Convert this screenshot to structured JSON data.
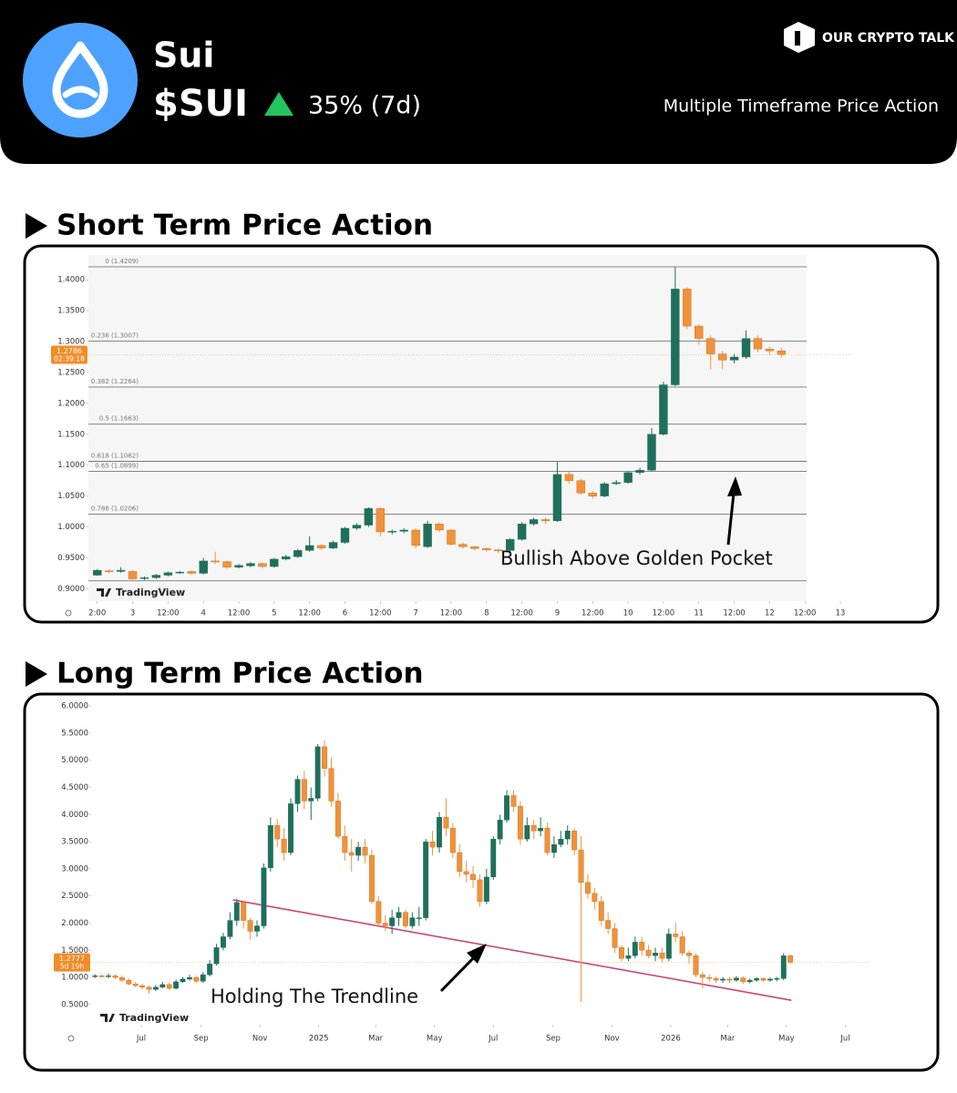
{
  "header": {
    "name": "Sui",
    "ticker": "$SUI",
    "change": "35% (7d)",
    "brand": "OUR CRYPTO TALK",
    "subtitle": "Multiple Timeframe Price Action"
  },
  "chart_data": [
    {
      "type": "candlestick",
      "title": "Short Term Price Action",
      "watermark": "TradingView",
      "annotation": "Bullish Above Golden Pocket",
      "up_color": "#1f6f5c",
      "down_color": "#f0923a",
      "grid": false,
      "xlim": [
        -15,
        244
      ],
      "ylim": [
        0.88,
        1.44
      ],
      "xticks": [
        {
          "value": -12,
          "label": "2:00"
        },
        {
          "value": 0,
          "label": "3"
        },
        {
          "value": 12,
          "label": "12:00"
        },
        {
          "value": 24,
          "label": "4"
        },
        {
          "value": 36,
          "label": "12:00"
        },
        {
          "value": 48,
          "label": "5"
        },
        {
          "value": 60,
          "label": "12:00"
        },
        {
          "value": 72,
          "label": "6"
        },
        {
          "value": 84,
          "label": "12:00"
        },
        {
          "value": 96,
          "label": "7"
        },
        {
          "value": 108,
          "label": "12:00"
        },
        {
          "value": 120,
          "label": "8"
        },
        {
          "value": 132,
          "label": "12:00"
        },
        {
          "value": 144,
          "label": "9"
        },
        {
          "value": 156,
          "label": "12:00"
        },
        {
          "value": 168,
          "label": "10"
        },
        {
          "value": 180,
          "label": "12:00"
        },
        {
          "value": 192,
          "label": "11"
        },
        {
          "value": 204,
          "label": "12:00"
        },
        {
          "value": 216,
          "label": "12"
        },
        {
          "value": 228,
          "label": "12:00"
        },
        {
          "value": 240,
          "label": "13"
        }
      ],
      "yticks": [
        {
          "value": 0.9,
          "label": "0.9000"
        },
        {
          "value": 0.95,
          "label": "0.9500"
        },
        {
          "value": 1.0,
          "label": "1.0000"
        },
        {
          "value": 1.05,
          "label": "1.0500"
        },
        {
          "value": 1.1,
          "label": "1.1000"
        },
        {
          "value": 1.15,
          "label": "1.1500"
        },
        {
          "value": 1.2,
          "label": "1.2000"
        },
        {
          "value": 1.25,
          "label": "1.2500"
        },
        {
          "value": 1.3,
          "label": "1.3000"
        },
        {
          "value": 1.35,
          "label": "1.3500"
        },
        {
          "value": 1.4,
          "label": "1.4000"
        }
      ],
      "fib_levels": [
        1.4209,
        1.3007,
        1.2264,
        1.1663,
        1.1062,
        1.0899,
        1.0206,
        0.9129
      ],
      "fib_labels": [
        "0 (1.4209)",
        "0.236 (1.3007)",
        "0.382 (1.2264)",
        "0.5 (1.1663)",
        "0.618 (1.1062)",
        "0.65 (1.0899)",
        "0.786 (1.0206)",
        null
      ],
      "price_tag": {
        "value": 1.2786,
        "timer": "02:39:18"
      },
      "x": [
        -12,
        -8,
        -4,
        0,
        4,
        8,
        12,
        16,
        20,
        24,
        28,
        32,
        36,
        40,
        44,
        48,
        52,
        56,
        60,
        64,
        68,
        72,
        76,
        80,
        84,
        88,
        92,
        96,
        100,
        104,
        108,
        112,
        116,
        120,
        124,
        128,
        132,
        136,
        140,
        144,
        148,
        152,
        156,
        160,
        164,
        168,
        172,
        176,
        180,
        184,
        188,
        192,
        196,
        200,
        204,
        208,
        212,
        216,
        220
      ],
      "open": [
        0.922,
        0.929,
        0.928,
        0.928,
        0.917,
        0.918,
        0.922,
        0.926,
        0.928,
        0.925,
        0.945,
        0.944,
        0.935,
        0.937,
        0.941,
        0.936,
        0.948,
        0.952,
        0.962,
        0.97,
        0.966,
        0.975,
        0.998,
        1.003,
        1.03,
        0.992,
        0.993,
        0.995,
        0.968,
        1.005,
        0.995,
        0.972,
        0.968,
        0.965,
        0.963,
        0.962,
        0.98,
        1.005,
        1.012,
        1.01,
        1.085,
        1.075,
        1.055,
        1.05,
        1.07,
        1.072,
        1.088,
        1.092,
        1.15,
        1.23,
        1.385,
        1.325,
        1.305,
        1.28,
        1.27,
        1.275,
        1.305,
        1.288,
        1.285
      ],
      "high": [
        0.932,
        0.931,
        0.935,
        0.93,
        0.92,
        0.924,
        0.928,
        0.929,
        0.93,
        0.95,
        0.96,
        0.946,
        0.94,
        0.943,
        0.942,
        0.95,
        0.955,
        0.965,
        0.985,
        0.972,
        0.978,
        1.0,
        1.006,
        1.032,
        1.032,
        0.996,
        0.998,
        0.998,
        1.01,
        1.007,
        0.997,
        0.975,
        0.97,
        0.967,
        0.965,
        0.982,
        1.008,
        1.015,
        1.015,
        1.105,
        1.09,
        1.078,
        1.058,
        1.073,
        1.076,
        1.09,
        1.096,
        1.16,
        1.235,
        1.421,
        1.388,
        1.328,
        1.31,
        1.285,
        1.28,
        1.318,
        1.31,
        1.292,
        1.29
      ],
      "low": [
        0.921,
        0.925,
        0.926,
        0.915,
        0.914,
        0.916,
        0.92,
        0.924,
        0.923,
        0.923,
        0.94,
        0.932,
        0.933,
        0.935,
        0.933,
        0.934,
        0.946,
        0.95,
        0.96,
        0.963,
        0.964,
        0.973,
        0.995,
        1.0,
        0.985,
        0.988,
        0.99,
        0.965,
        0.966,
        0.992,
        0.97,
        0.965,
        0.962,
        0.96,
        0.958,
        0.96,
        0.978,
        1.002,
        1.005,
        1.008,
        1.07,
        1.052,
        1.046,
        1.048,
        1.068,
        1.07,
        1.085,
        1.09,
        1.148,
        1.228,
        1.32,
        1.295,
        1.255,
        1.255,
        1.265,
        1.272,
        1.283,
        1.278,
        1.274
      ],
      "close": [
        0.93,
        0.928,
        0.93,
        0.916,
        0.918,
        0.922,
        0.926,
        0.927,
        0.925,
        0.945,
        0.944,
        0.935,
        0.938,
        0.941,
        0.936,
        0.948,
        0.952,
        0.962,
        0.97,
        0.966,
        0.975,
        0.998,
        1.003,
        1.03,
        0.992,
        0.993,
        0.995,
        0.97,
        1.005,
        0.995,
        0.972,
        0.968,
        0.965,
        0.963,
        0.962,
        0.98,
        1.005,
        1.012,
        1.01,
        1.085,
        1.075,
        1.055,
        1.05,
        1.07,
        1.072,
        1.088,
        1.092,
        1.15,
        1.23,
        1.385,
        1.325,
        1.305,
        1.28,
        1.27,
        1.275,
        1.305,
        1.288,
        1.285,
        1.279
      ]
    },
    {
      "type": "candlestick",
      "title": "Long Term Price Action",
      "watermark": "TradingView",
      "annotation": "Holding The Trendline",
      "up_color": "#1f6f5c",
      "down_color": "#f0923a",
      "grid": false,
      "trend_color": "#c9467a",
      "xlim": [
        -236,
        572
      ],
      "ylim": [
        0.13,
        6.17
      ],
      "xticks": [
        {
          "value": -184,
          "label": "Jul"
        },
        {
          "value": -122,
          "label": "Sep"
        },
        {
          "value": -61,
          "label": "Nov"
        },
        {
          "value": 0,
          "label": "2025"
        },
        {
          "value": 59,
          "label": "Mar"
        },
        {
          "value": 120,
          "label": "May"
        },
        {
          "value": 181,
          "label": "Jul"
        },
        {
          "value": 243,
          "label": "Sep"
        },
        {
          "value": 304,
          "label": "Nov"
        },
        {
          "value": 365,
          "label": "2026"
        },
        {
          "value": 424,
          "label": "Mar"
        },
        {
          "value": 485,
          "label": "May"
        },
        {
          "value": 546,
          "label": "Jul"
        }
      ],
      "yticks": [
        {
          "value": 0.5,
          "label": "0.5000"
        },
        {
          "value": 1.0,
          "label": "1.0000"
        },
        {
          "value": 1.5,
          "label": "1.5000"
        },
        {
          "value": 2.0,
          "label": "2.0000"
        },
        {
          "value": 2.5,
          "label": "2.5000"
        },
        {
          "value": 3.0,
          "label": "3.0000"
        },
        {
          "value": 3.5,
          "label": "3.5000"
        },
        {
          "value": 4.0,
          "label": "4.0000"
        },
        {
          "value": 4.5,
          "label": "4.5000"
        },
        {
          "value": 5.0,
          "label": "5.0000"
        },
        {
          "value": 5.5,
          "label": "5.5000"
        },
        {
          "value": 6.0,
          "label": "6.0000"
        }
      ],
      "trendline": {
        "x": [
          -89,
          490
        ],
        "y": [
          2.43,
          0.58
        ]
      },
      "price_tag": {
        "value": 1.2777,
        "timer": "5d 19h"
      },
      "x": [
        -232,
        -225,
        -218,
        -211,
        -204,
        -197,
        -190,
        -183,
        -176,
        -169,
        -162,
        -155,
        -148,
        -141,
        -134,
        -127,
        -120,
        -113,
        -106,
        -99,
        -92,
        -85,
        -78,
        -71,
        -64,
        -57,
        -50,
        -43,
        -36,
        -29,
        -22,
        -15,
        -8,
        -1,
        6,
        13,
        20,
        27,
        34,
        41,
        48,
        55,
        62,
        69,
        76,
        83,
        90,
        97,
        104,
        111,
        118,
        125,
        132,
        139,
        146,
        153,
        160,
        167,
        174,
        181,
        188,
        195,
        202,
        209,
        216,
        223,
        230,
        237,
        244,
        251,
        258,
        265,
        272,
        279,
        286,
        293,
        300,
        307,
        314,
        321,
        328,
        335,
        342,
        349,
        356,
        363,
        370,
        377,
        384,
        391,
        398,
        405,
        412,
        419,
        426,
        433,
        440,
        447,
        454,
        461,
        468,
        475,
        482,
        489
      ],
      "open": [
        1.02,
        1.03,
        1.02,
        1.03,
        1.0,
        0.95,
        0.88,
        0.85,
        0.82,
        0.78,
        0.82,
        0.87,
        0.8,
        0.92,
        0.97,
        1.0,
        0.93,
        1.05,
        1.25,
        1.55,
        1.75,
        2.05,
        2.38,
        2.05,
        1.85,
        1.95,
        3.02,
        3.8,
        3.55,
        3.3,
        4.2,
        4.65,
        4.25,
        4.3,
        5.25,
        4.85,
        4.25,
        3.6,
        3.3,
        3.25,
        3.4,
        3.25,
        2.4,
        2.0,
        1.95,
        2.1,
        2.2,
        1.95,
        2.1,
        2.1,
        3.5,
        3.4,
        3.95,
        3.75,
        3.3,
        2.95,
        2.9,
        2.8,
        2.4,
        2.85,
        3.55,
        3.9,
        4.35,
        4.15,
        3.55,
        3.8,
        3.7,
        3.75,
        3.3,
        3.45,
        3.55,
        3.7,
        3.35,
        2.75,
        2.55,
        2.4,
        2.05,
        1.9,
        1.55,
        1.35,
        1.4,
        1.65,
        1.5,
        1.4,
        1.45,
        1.35,
        1.8,
        1.75,
        1.45,
        1.4,
        1.05,
        1.0,
        0.98,
        0.95,
        0.97,
        0.95,
        0.99,
        0.92,
        0.95,
        0.98,
        0.95,
        0.97,
        0.98,
        1.4
      ],
      "high": [
        1.06,
        1.06,
        1.07,
        1.06,
        1.03,
        0.98,
        0.92,
        0.88,
        0.85,
        0.86,
        0.92,
        0.9,
        0.96,
        1.01,
        1.05,
        1.03,
        1.1,
        1.32,
        1.62,
        1.82,
        2.2,
        2.45,
        2.42,
        2.1,
        2.05,
        3.1,
        3.95,
        3.92,
        3.75,
        4.3,
        4.72,
        4.8,
        4.5,
        5.3,
        5.37,
        5.05,
        4.4,
        3.8,
        3.55,
        3.5,
        3.55,
        3.35,
        2.5,
        2.15,
        2.25,
        2.3,
        2.25,
        2.2,
        2.3,
        3.55,
        3.7,
        4.05,
        4.3,
        3.85,
        3.45,
        3.15,
        3.05,
        2.9,
        3.0,
        3.6,
        4.0,
        4.45,
        4.45,
        4.25,
        3.95,
        3.9,
        3.95,
        3.85,
        3.6,
        3.7,
        3.8,
        3.75,
        3.6,
        2.9,
        2.65,
        2.5,
        2.2,
        2.0,
        1.6,
        1.55,
        1.75,
        1.75,
        1.6,
        1.55,
        1.55,
        1.9,
        2.02,
        1.85,
        1.5,
        1.45,
        1.1,
        1.05,
        1.02,
        1.01,
        1.0,
        1.02,
        1.02,
        0.98,
        1.01,
        1.0,
        1.0,
        1.01,
        1.45,
        1.42
      ],
      "low": [
        0.99,
        1.0,
        0.99,
        0.97,
        0.92,
        0.85,
        0.82,
        0.78,
        0.7,
        0.75,
        0.8,
        0.77,
        0.78,
        0.9,
        0.94,
        0.9,
        0.9,
        1.02,
        1.22,
        1.5,
        1.7,
        1.95,
        1.9,
        1.7,
        1.75,
        1.9,
        2.95,
        3.4,
        3.15,
        3.25,
        4.05,
        4.1,
        3.9,
        4.25,
        4.7,
        4.15,
        3.55,
        3.15,
        2.95,
        3.15,
        3.1,
        2.35,
        1.95,
        1.85,
        1.8,
        1.95,
        1.9,
        1.9,
        1.95,
        2.05,
        3.25,
        3.3,
        3.6,
        3.2,
        2.85,
        2.75,
        2.65,
        2.3,
        2.35,
        2.8,
        3.45,
        3.85,
        4.05,
        3.45,
        3.5,
        3.55,
        3.6,
        3.25,
        3.2,
        3.4,
        3.45,
        3.25,
        0.55,
        2.45,
        2.25,
        1.95,
        1.8,
        1.45,
        1.3,
        1.3,
        1.35,
        1.4,
        1.35,
        1.3,
        1.28,
        1.3,
        1.65,
        1.4,
        1.25,
        1.0,
        0.8,
        0.92,
        0.9,
        0.9,
        0.9,
        0.92,
        0.88,
        0.89,
        0.92,
        0.92,
        0.92,
        0.93,
        0.95,
        1.25
      ],
      "close": [
        1.03,
        1.02,
        1.03,
        1.0,
        0.95,
        0.88,
        0.85,
        0.82,
        0.78,
        0.82,
        0.87,
        0.8,
        0.92,
        0.97,
        1.0,
        0.93,
        1.05,
        1.25,
        1.55,
        1.75,
        2.05,
        2.38,
        2.05,
        1.85,
        1.95,
        3.02,
        3.8,
        3.55,
        3.3,
        4.2,
        4.65,
        4.25,
        4.3,
        5.25,
        4.85,
        4.25,
        3.6,
        3.3,
        3.25,
        3.4,
        3.25,
        2.4,
        2.0,
        1.95,
        2.1,
        2.2,
        1.95,
        2.1,
        2.1,
        3.5,
        3.4,
        3.95,
        3.75,
        3.3,
        2.95,
        2.9,
        2.8,
        2.4,
        2.85,
        3.55,
        3.9,
        4.35,
        4.15,
        3.55,
        3.8,
        3.7,
        3.75,
        3.3,
        3.45,
        3.55,
        3.7,
        3.35,
        2.75,
        2.55,
        2.4,
        2.05,
        1.9,
        1.55,
        1.35,
        1.4,
        1.65,
        1.5,
        1.4,
        1.45,
        1.35,
        1.8,
        1.75,
        1.45,
        1.4,
        1.05,
        1.0,
        0.98,
        0.95,
        0.97,
        0.95,
        0.99,
        0.92,
        0.95,
        0.98,
        0.95,
        0.97,
        0.98,
        1.4,
        1.28
      ]
    }
  ]
}
